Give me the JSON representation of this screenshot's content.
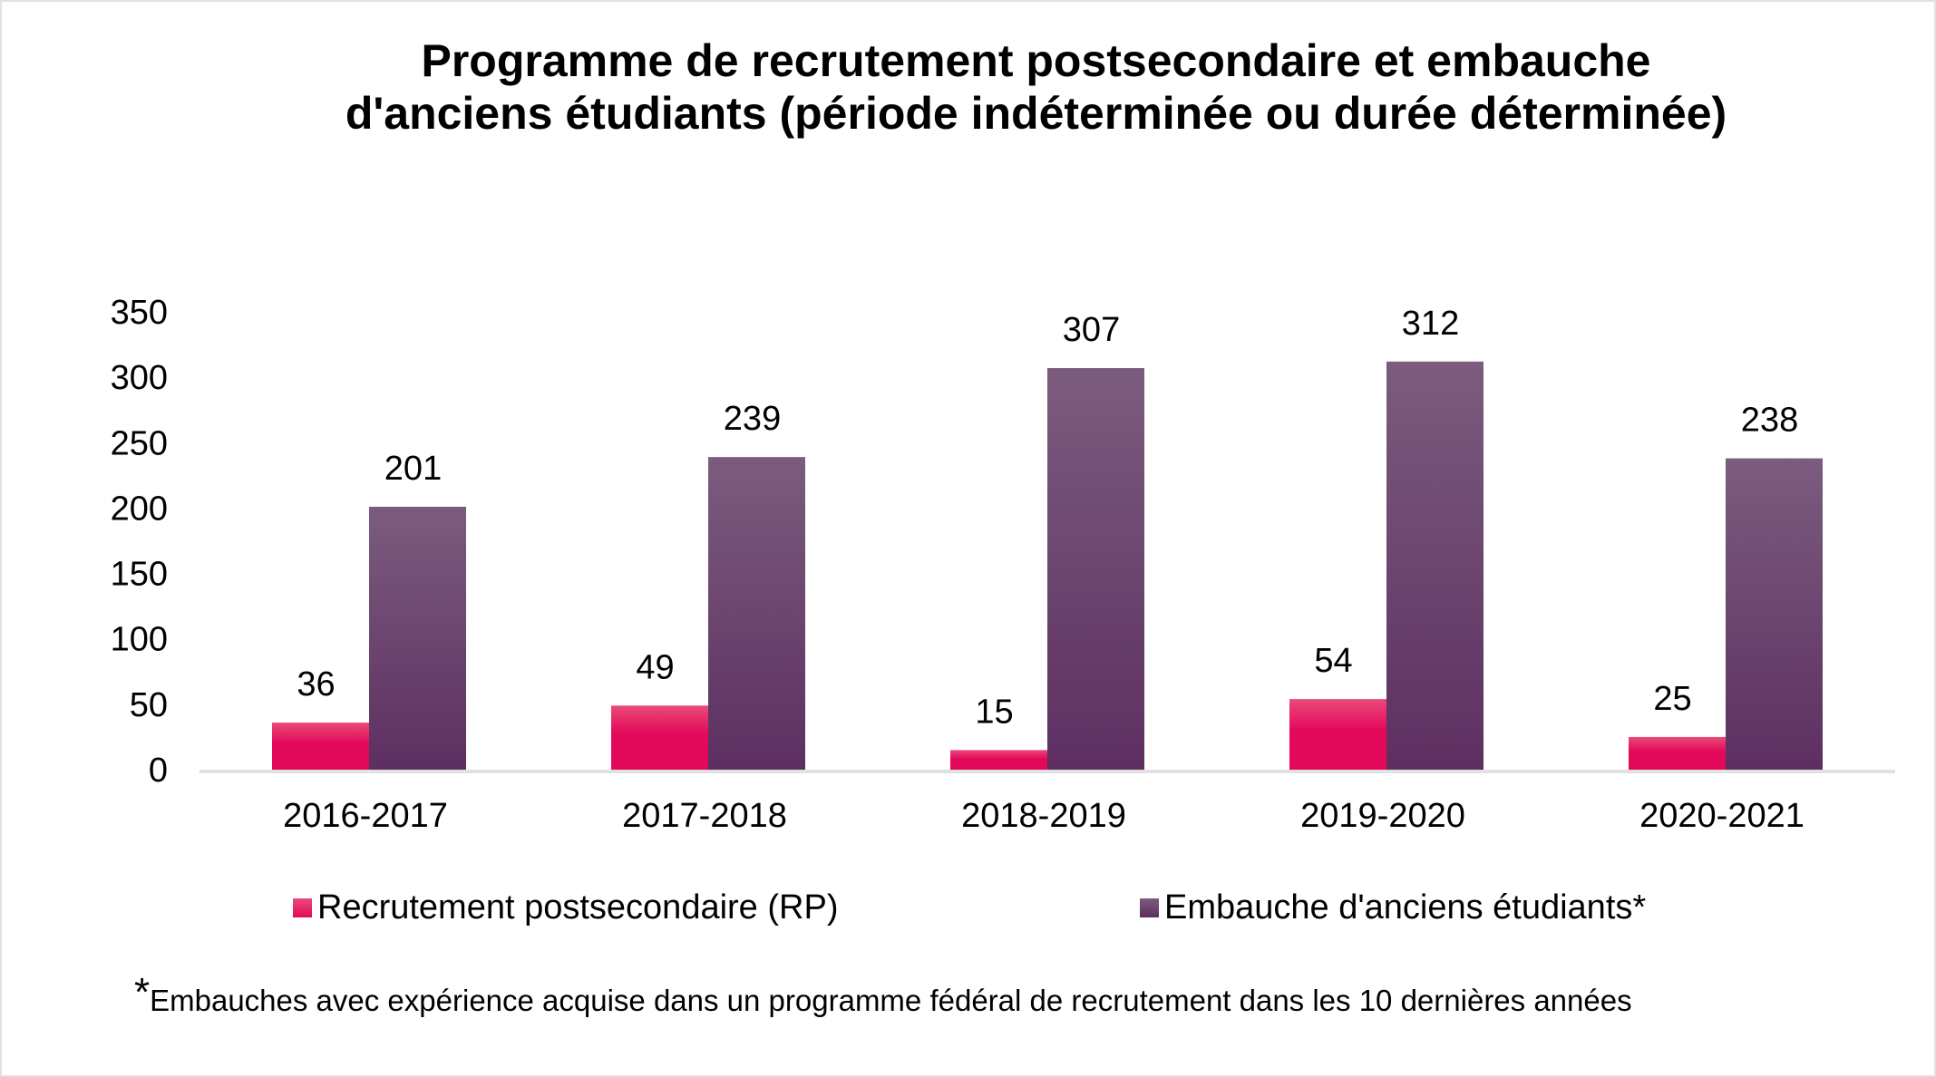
{
  "chart_data": {
    "type": "bar",
    "title_lines": [
      "Programme de recrutement postsecondaire et embauche",
      "d'anciens étudiants (période indéterminée ou durée déterminée)"
    ],
    "categories": [
      "2016-2017",
      "2017-2018",
      "2018-2019",
      "2019-2020",
      "2020-2021"
    ],
    "series": [
      {
        "name": "Recrutement postsecondaire (RP)",
        "values": [
          36,
          49,
          15,
          54,
          25
        ],
        "color_top": "#ea4a79",
        "color_bottom": "#e2085a"
      },
      {
        "name": "Embauche d'anciens étudiants*",
        "values": [
          201,
          239,
          307,
          312,
          238
        ],
        "color_top": "#7b5c7e",
        "color_bottom": "#5d2f61"
      }
    ],
    "xlabel": "",
    "ylabel": "",
    "ylim": [
      0,
      350
    ],
    "yticks": [
      0,
      50,
      100,
      150,
      200,
      250,
      300,
      350
    ],
    "grid": false,
    "data_labels": true,
    "legend_position": "bottom",
    "axis_color": "#e1e1e1"
  },
  "footnote": {
    "marker": "*",
    "text": "Embauches avec expérience acquise dans un programme fédéral de recrutement dans les 10 dernières années"
  }
}
